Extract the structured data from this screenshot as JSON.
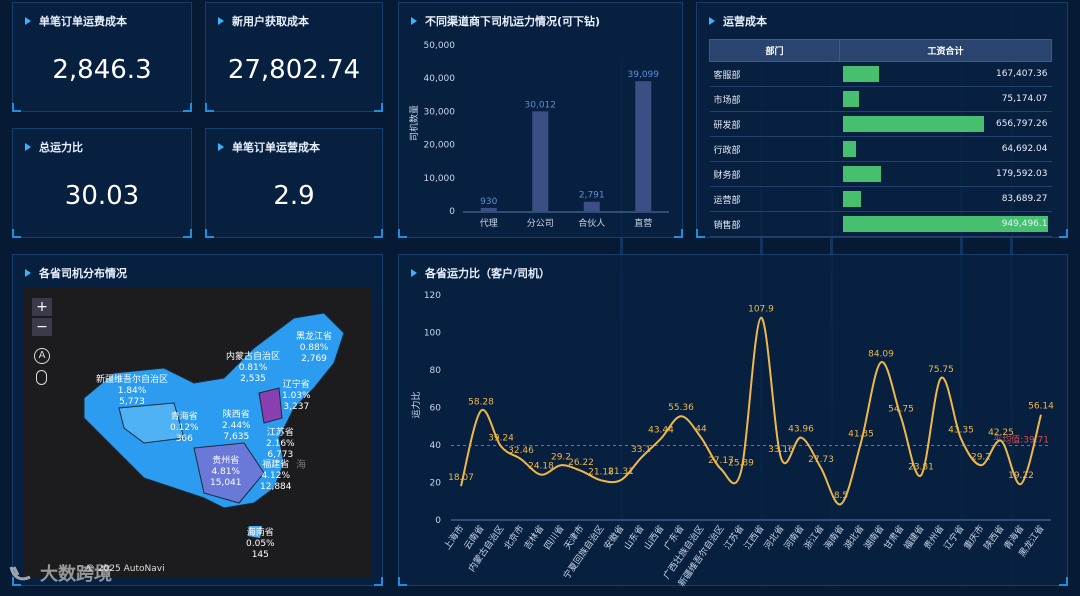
{
  "kpis": {
    "order_freight_cost": {
      "label": "单笔订单运费成本",
      "value": "2,846.3"
    },
    "new_user_cost": {
      "label": "新用户获取成本",
      "value": "27,802.74"
    },
    "capacity_ratio": {
      "label": "总运力比",
      "value": "30.03"
    },
    "order_operation_cost": {
      "label": "单笔订单运营成本",
      "value": "2.9"
    }
  },
  "channel_chart": {
    "title": "不同渠道商下司机运力情况(可下钻)",
    "ylabel": "司机数量",
    "chart_data": {
      "type": "bar",
      "categories": [
        "代理",
        "分公司",
        "合伙人",
        "直营"
      ],
      "values": [
        930,
        30012,
        2791,
        39099
      ],
      "value_labels": [
        "930",
        "30,012",
        "2,791",
        "39,099"
      ],
      "ylim": [
        0,
        50000
      ],
      "yticks": [
        "50,000",
        "40,000",
        "30,000",
        "20,000",
        "10,000",
        "0"
      ],
      "bar_color": "#3c4f84",
      "label_color": "#5b8fd8"
    }
  },
  "op_cost": {
    "title": "运营成本",
    "headers": [
      "部门",
      "工资合计"
    ],
    "max_value": 949496.1,
    "bar_color": "#46c06f",
    "rows": [
      {
        "dept": "客服部",
        "value": 167407.36,
        "label": "167,407.36"
      },
      {
        "dept": "市场部",
        "value": 75174.07,
        "label": "75,174.07"
      },
      {
        "dept": "研发部",
        "value": 656797.26,
        "label": "656,797.26"
      },
      {
        "dept": "行政部",
        "value": 64692.04,
        "label": "64,692.04"
      },
      {
        "dept": "财务部",
        "value": 179592.03,
        "label": "179,592.03"
      },
      {
        "dept": "运营部",
        "value": 83689.27,
        "label": "83,689.27"
      },
      {
        "dept": "销售部",
        "value": 949496.1,
        "label": "949,496.1"
      }
    ]
  },
  "province_map": {
    "title": "各省司机分布情况",
    "zoom_in": "+",
    "zoom_out": "−",
    "attribution": "© 2025 AutoNavi",
    "labels": [
      {
        "name": "新疆维吾尔自治区",
        "pct": "1.84%",
        "count": "5,773"
      },
      {
        "name": "内蒙古自治区",
        "pct": "0.81%",
        "count": "2,535"
      },
      {
        "name": "黑龙江省",
        "pct": "0.88%",
        "count": "2,769"
      },
      {
        "name": "辽宁省",
        "pct": "1.03%",
        "count": "3,237"
      },
      {
        "name": "青海省",
        "pct": "0.12%",
        "count": "366"
      },
      {
        "name": "陕西省",
        "pct": "2.44%",
        "count": "7,635"
      },
      {
        "name": "江苏省",
        "pct": "2.16%",
        "count": "6,773"
      },
      {
        "name": "贵州省",
        "pct": "4.81%",
        "count": "15,041"
      },
      {
        "name": "福建省",
        "pct": "4.12%",
        "count": "12,884"
      },
      {
        "name": "海南省",
        "pct": "0.05%",
        "count": "145"
      }
    ],
    "sea_label": "海"
  },
  "ratio_chart": {
    "title": "各省运力比（客户/司机）",
    "ylabel": "运力比",
    "avg_label": "平均值:39.71",
    "chart_data": {
      "type": "line",
      "categories": [
        "上海市",
        "云南省",
        "内蒙古自治区",
        "北京市",
        "吉林省",
        "四川省",
        "天津市",
        "宁夏回族自治区",
        "安徽省",
        "山东省",
        "山西省",
        "广东省",
        "广西壮族自治区",
        "新疆维吾尔自治区",
        "江苏省",
        "江西省",
        "河北省",
        "河南省",
        "浙江省",
        "海南省",
        "湖北省",
        "湖南省",
        "甘肃省",
        "福建省",
        "贵州省",
        "辽宁省",
        "重庆市",
        "陕西省",
        "青海省",
        "黑龙江省"
      ],
      "values": [
        18.07,
        58.28,
        39.24,
        32.46,
        24.18,
        29.2,
        26.22,
        21.18,
        21.31,
        33.1,
        43.44,
        55.36,
        44,
        27.17,
        25.89,
        107.9,
        33.16,
        43.96,
        27.73,
        8.5,
        41.35,
        84.09,
        54.75,
        23.81,
        75.75,
        43.35,
        29.2,
        42.25,
        19.22,
        56.14
      ],
      "ylim": [
        0,
        120
      ],
      "yticks": [
        0,
        20,
        40,
        60,
        80,
        100,
        120
      ],
      "average": 39.71,
      "line_color": "#f0b84a",
      "avg_color": "#d94a4a"
    }
  },
  "logo": {
    "text": "大数跨境"
  }
}
